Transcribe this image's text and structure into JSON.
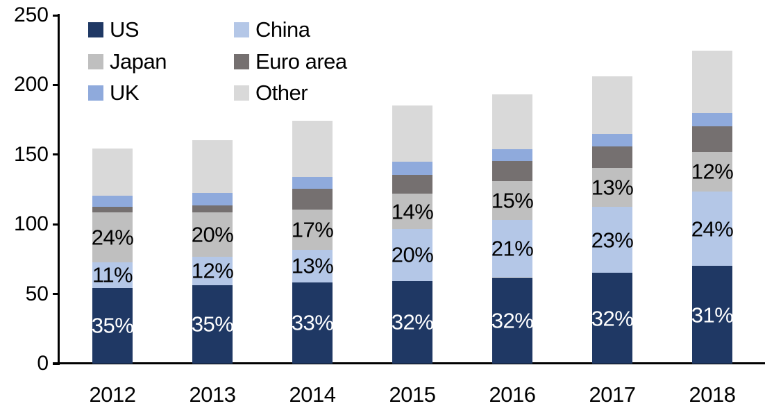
{
  "background_color": "#ffffff",
  "axis_color": "#000000",
  "chart_data": {
    "type": "bar",
    "stacked": true,
    "title": "",
    "xlabel": "",
    "ylabel": "",
    "categories": [
      "2012",
      "2013",
      "2014",
      "2015",
      "2016",
      "2017",
      "2018"
    ],
    "series": [
      {
        "name": "US",
        "color": "#1f3864",
        "label_color": "#ffffff",
        "values": [
          54.5,
          56.5,
          58.5,
          59.5,
          62,
          65,
          70
        ],
        "labels": [
          "35%",
          "35%",
          "33%",
          "32%",
          "32%",
          "32%",
          "31%"
        ]
      },
      {
        "name": "China",
        "color": "#b4c7e7",
        "label_color": "#000000",
        "values": [
          18,
          20,
          23,
          37,
          41,
          47.5,
          53.5
        ],
        "labels": [
          "11%",
          "12%",
          "13%",
          "20%",
          "21%",
          "23%",
          "24%"
        ]
      },
      {
        "name": "Japan",
        "color": "#bfbfbf",
        "label_color": "#000000",
        "values": [
          36,
          32,
          29,
          25.5,
          28,
          28,
          28.5
        ],
        "labels": [
          "24%",
          "20%",
          "17%",
          "14%",
          "15%",
          "13%",
          "12%"
        ]
      },
      {
        "name": "Euro area",
        "color": "#757070",
        "label_color": null,
        "values": [
          4,
          5,
          15,
          13.5,
          14.5,
          15.5,
          18.5
        ],
        "labels": null
      },
      {
        "name": "UK",
        "color": "#8faadc",
        "label_color": null,
        "values": [
          8,
          9,
          8.5,
          9.5,
          8.5,
          9,
          9.5
        ],
        "labels": null
      },
      {
        "name": "Other",
        "color": "#d9d9d9",
        "label_color": null,
        "values": [
          34,
          38,
          40.5,
          40.5,
          39,
          41,
          44.5
        ],
        "labels": null
      }
    ],
    "totals": [
      154.5,
      160.5,
      174.5,
      185.5,
      193,
      206,
      224.5
    ],
    "ylim": [
      0,
      250
    ],
    "yticks": [
      0,
      50,
      100,
      150,
      200,
      250
    ],
    "grid": false,
    "legend_position": "top-left",
    "legend_columns": 2
  }
}
